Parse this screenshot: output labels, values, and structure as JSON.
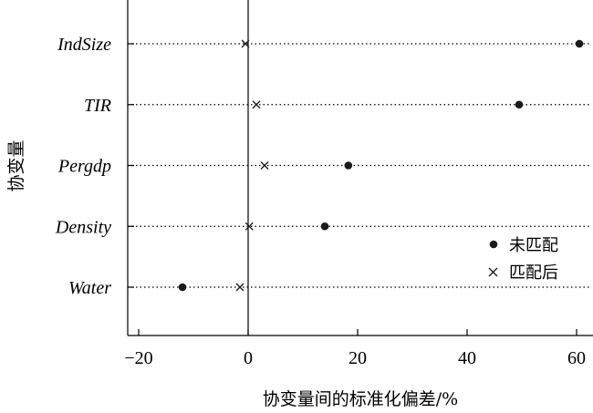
{
  "chart_data": {
    "type": "scatter",
    "xlabel": "协变量间的标准化偏差/%",
    "ylabel": "协变量",
    "xlim": [
      -25,
      64
    ],
    "xticks": [
      -20,
      0,
      20,
      40,
      60
    ],
    "categories": [
      "IndSize",
      "TIR",
      "Pergdp",
      "Density",
      "Water"
    ],
    "series": [
      {
        "name": "未匹配",
        "marker": "dot",
        "values": [
          60.5,
          49.5,
          18.3,
          14.0,
          -12.0
        ]
      },
      {
        "name": "匹配后",
        "marker": "x",
        "values": [
          -0.5,
          1.5,
          3.0,
          0.2,
          -1.5
        ]
      }
    ],
    "legend_position": "lower-right",
    "grid": false
  }
}
